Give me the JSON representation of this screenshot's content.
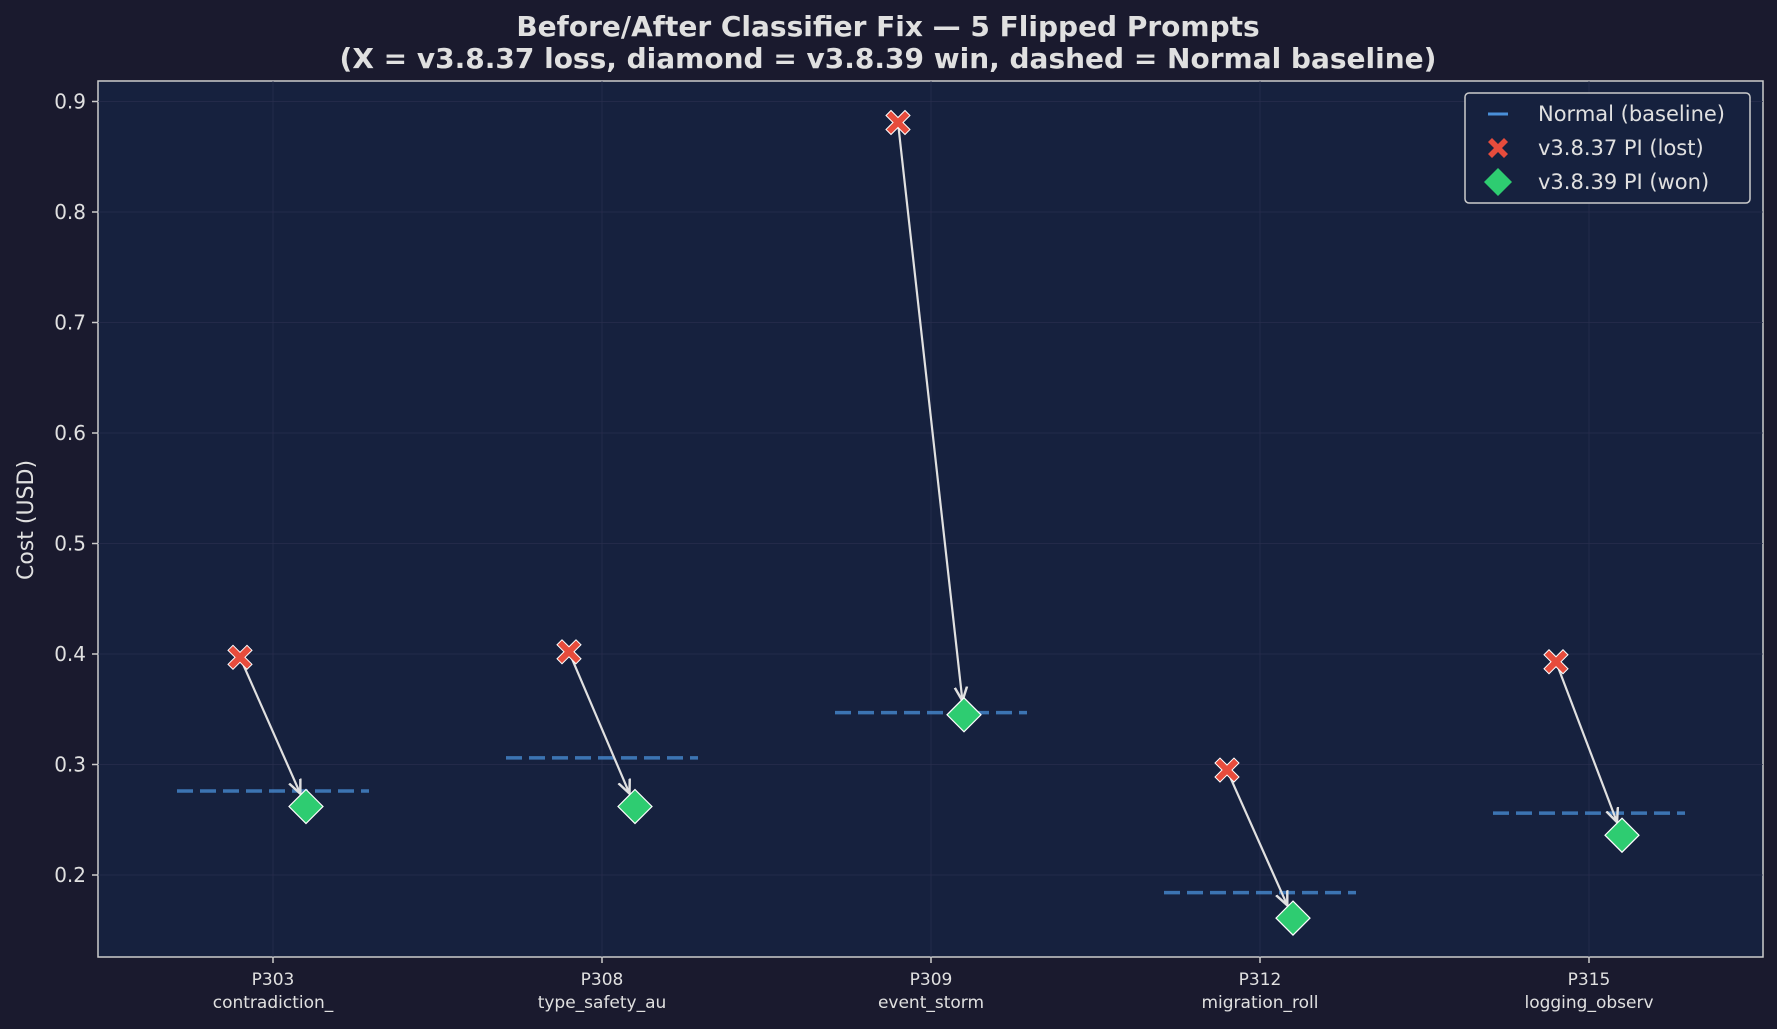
{
  "chart_data": {
    "type": "scatter",
    "title": "Before/After Classifier Fix — 5 Flipped Prompts",
    "subtitle": "(X = v3.8.37 loss, diamond = v3.8.39 win, dashed = Normal baseline)",
    "xlabel": "",
    "ylabel": "Cost (USD)",
    "ylim": [
      0.126,
      0.918
    ],
    "yticks": [
      0.2,
      0.3,
      0.4,
      0.5,
      0.6,
      0.7,
      0.8,
      0.9
    ],
    "ytick_labels": [
      "0.2",
      "0.3",
      "0.4",
      "0.5",
      "0.6",
      "0.7",
      "0.8",
      "0.9"
    ],
    "grid": true,
    "legend_position": "upper right",
    "categories": [
      {
        "id": "P303",
        "name": "contradiction_"
      },
      {
        "id": "P308",
        "name": "type_safety_au"
      },
      {
        "id": "P309",
        "name": "event_storm"
      },
      {
        "id": "P312",
        "name": "migration_roll"
      },
      {
        "id": "P315",
        "name": "logging_observ"
      }
    ],
    "series": [
      {
        "name": "Normal (baseline)",
        "marker": "dashed-line",
        "color": "#4a90d9",
        "values": [
          0.276,
          0.306,
          0.347,
          0.184,
          0.256
        ]
      },
      {
        "name": "v3.8.37 PI (lost)",
        "marker": "X",
        "color": "#e74c3c",
        "values": [
          0.397,
          0.402,
          0.881,
          0.295,
          0.393
        ]
      },
      {
        "name": "v3.8.39 PI (won)",
        "marker": "diamond",
        "color": "#2ecc71",
        "values": [
          0.262,
          0.262,
          0.345,
          0.161,
          0.236
        ]
      }
    ],
    "annotations": "Arrows from each v3.8.37 X to the corresponding v3.8.39 diamond"
  },
  "colors": {
    "figure_bg": "#1a1a2e",
    "plot_bg": "#16213e",
    "text": "#e0e0e0",
    "baseline": "#4a90d9",
    "loss": "#e74c3c",
    "win": "#2ecc71",
    "arrow": "#e0e0e0"
  }
}
